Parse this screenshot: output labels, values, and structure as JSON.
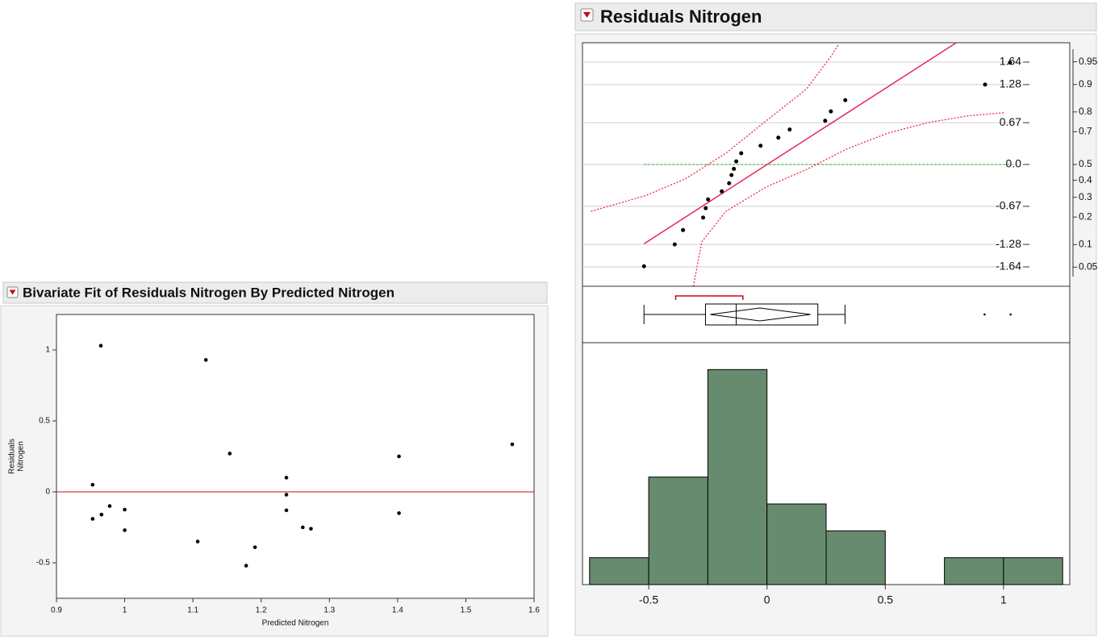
{
  "chart_data": [
    {
      "type": "scatter",
      "title": "Bivariate Fit of Residuals Nitrogen By Predicted Nitrogen",
      "xlabel": "Predicted Nitrogen",
      "ylabel": [
        "Residuals",
        "Nitrogen"
      ],
      "xlim": [
        0.9,
        1.6
      ],
      "xticks": [
        0.9,
        1,
        1.1,
        1.2,
        1.3,
        1.4,
        1.5,
        1.6
      ],
      "ylim": [
        -0.75,
        1.25
      ],
      "yticks": [
        -0.5,
        0,
        0.5,
        1
      ],
      "color": "#000000",
      "reference_line": {
        "value": 0,
        "color": "#d0021b"
      },
      "x": [
        0.965,
        0.953,
        0.953,
        0.966,
        0.978,
        1.0,
        1.0,
        1.107,
        1.119,
        1.154,
        1.178,
        1.191,
        1.237,
        1.237,
        1.237,
        1.261,
        1.273,
        1.402,
        1.402,
        1.568
      ],
      "values": [
        1.03,
        0.05,
        -0.19,
        -0.16,
        -0.1,
        -0.125,
        -0.27,
        -0.35,
        0.93,
        0.27,
        -0.52,
        -0.39,
        0.1,
        -0.02,
        -0.13,
        -0.25,
        -0.26,
        0.25,
        -0.15,
        0.335
      ]
    },
    {
      "type": "distribution",
      "title": "Residuals Nitrogen",
      "xlim": [
        -0.78,
        1.28
      ],
      "quantile_plot": {
        "ylim": [
          -1.95,
          1.95
        ],
        "yticks": [
          1.64,
          1.28,
          0.67,
          {
            "value": 0,
            "label": "0.0"
          },
          -0.67,
          -1.28,
          -1.64
        ],
        "y2scale": "normal-probability",
        "y2ticks": [
          0.95,
          0.9,
          0.8,
          0.7,
          0.5,
          0.4,
          0.3,
          0.2,
          0.1,
          0.05
        ],
        "grid": true,
        "point_color": "#000000",
        "x": [
          -0.52,
          -0.39,
          -0.355,
          -0.27,
          -0.259,
          -0.249,
          -0.191,
          -0.16,
          -0.15,
          -0.14,
          -0.13,
          -0.109,
          -0.027,
          0.048,
          0.096,
          0.246,
          0.27,
          0.331,
          0.922,
          1.027
        ],
        "values": [
          -1.63,
          -1.28,
          -1.05,
          -0.85,
          -0.7,
          -0.56,
          -0.43,
          -0.3,
          -0.17,
          -0.07,
          0.05,
          0.18,
          0.3,
          0.43,
          0.56,
          0.7,
          0.85,
          1.03,
          1.28,
          1.63
        ],
        "fit_line": {
          "color": "#e8245f",
          "x": [
            -0.52,
            0.8
          ],
          "values": [
            -1.27,
            1.95
          ]
        },
        "confidence_bands": {
          "color": "#e8245f",
          "upper": {
            "x": [
              -0.744,
              -0.515,
              -0.345,
              -0.174,
              -0.003,
              0.167,
              0.27,
              0.304
            ],
            "values": [
              -0.75,
              -0.5,
              -0.23,
              0.18,
              0.7,
              1.21,
              1.73,
              1.93
            ]
          },
          "lower": {
            "x": [
              -0.311,
              -0.276,
              -0.174,
              -0.003,
              0.167,
              0.338,
              0.509,
              0.679,
              0.85,
              1.003
            ],
            "values": [
              -1.95,
              -1.24,
              -0.75,
              -0.36,
              -0.08,
              0.25,
              0.5,
              0.67,
              0.78,
              0.83
            ]
          }
        },
        "reference_line": {
          "value": 0,
          "color": "#2ca02c"
        }
      },
      "box_plot": {
        "whisker_low": -0.52,
        "q1": -0.26,
        "median": -0.13,
        "q3": 0.215,
        "whisker_high": 0.33,
        "mean": -0.03,
        "mean_ci": [
          -0.24,
          0.184
        ],
        "outliers": [
          0.92,
          1.03
        ],
        "shortest_half": [
          -0.386,
          -0.102
        ],
        "shortest_half_color": "#d0021b"
      },
      "histogram": {
        "bins": [
          -0.75,
          -0.5,
          -0.25,
          0,
          0.25,
          0.5,
          0.75,
          1,
          1.25
        ],
        "values": [
          1,
          4,
          8,
          3,
          2,
          0,
          1,
          1
        ],
        "ylim": [
          0,
          9
        ],
        "color": "#678b6e",
        "xticks": [
          -0.5,
          0,
          0.5,
          1
        ]
      }
    }
  ]
}
